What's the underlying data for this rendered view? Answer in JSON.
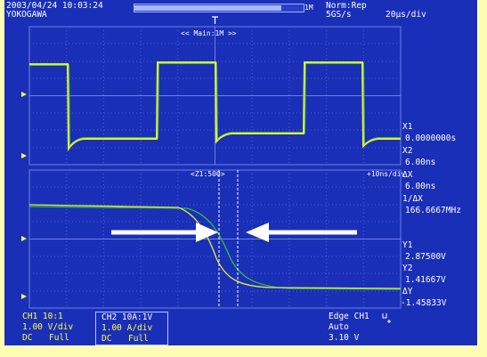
{
  "header": {
    "date_time": "2003/04/24 10:03:24",
    "brand": "YOKOGAWA",
    "trigger_mode": "Norm:Rep",
    "sample_rate": "5GS/s",
    "time_per_div": "20µs/div",
    "record_length_label": "1M",
    "record_bar_fill_fraction": 0.87
  },
  "upper_window": {
    "label": "<< Main:1M >>"
  },
  "lower_window": {
    "label": "<Z1:500>",
    "zoom_time_div": "+10ns/div"
  },
  "cursor_readout": {
    "x1_label": "X1",
    "x1_value": "0.0000000s",
    "x2_label": "X2",
    "x2_value": "6.00ns",
    "dx_label": "ΔX",
    "dx_value": "6.00ns",
    "inv_dx_label": "1/ΔX",
    "inv_dx_value": "166.6667MHz",
    "y1_label": "Y1",
    "y1_value": "2.87500V",
    "y2_label": "Y2",
    "y2_value": "1.41667V",
    "dy_label": "ΔY",
    "dy_value": "-1.45833V"
  },
  "channels": {
    "ch1": {
      "line1": "CH1 10:1",
      "line2": "1.00 V/div",
      "coupling": "DC",
      "bandwidth": "Full"
    },
    "ch2": {
      "line1": "CH2 10A:1V",
      "line2": "1.00 A/div",
      "coupling": "DC",
      "bandwidth": "Full"
    }
  },
  "trigger": {
    "type": "Edge CH1",
    "mode": "Auto",
    "level": "3.10 V"
  },
  "colors": {
    "screen_bg": "#1a2fb8",
    "ch1_trace": "#e8e840",
    "ch2_trace": "#30c040",
    "border": "#fdfdb4",
    "annotation_arrow": "#ffffff"
  }
}
